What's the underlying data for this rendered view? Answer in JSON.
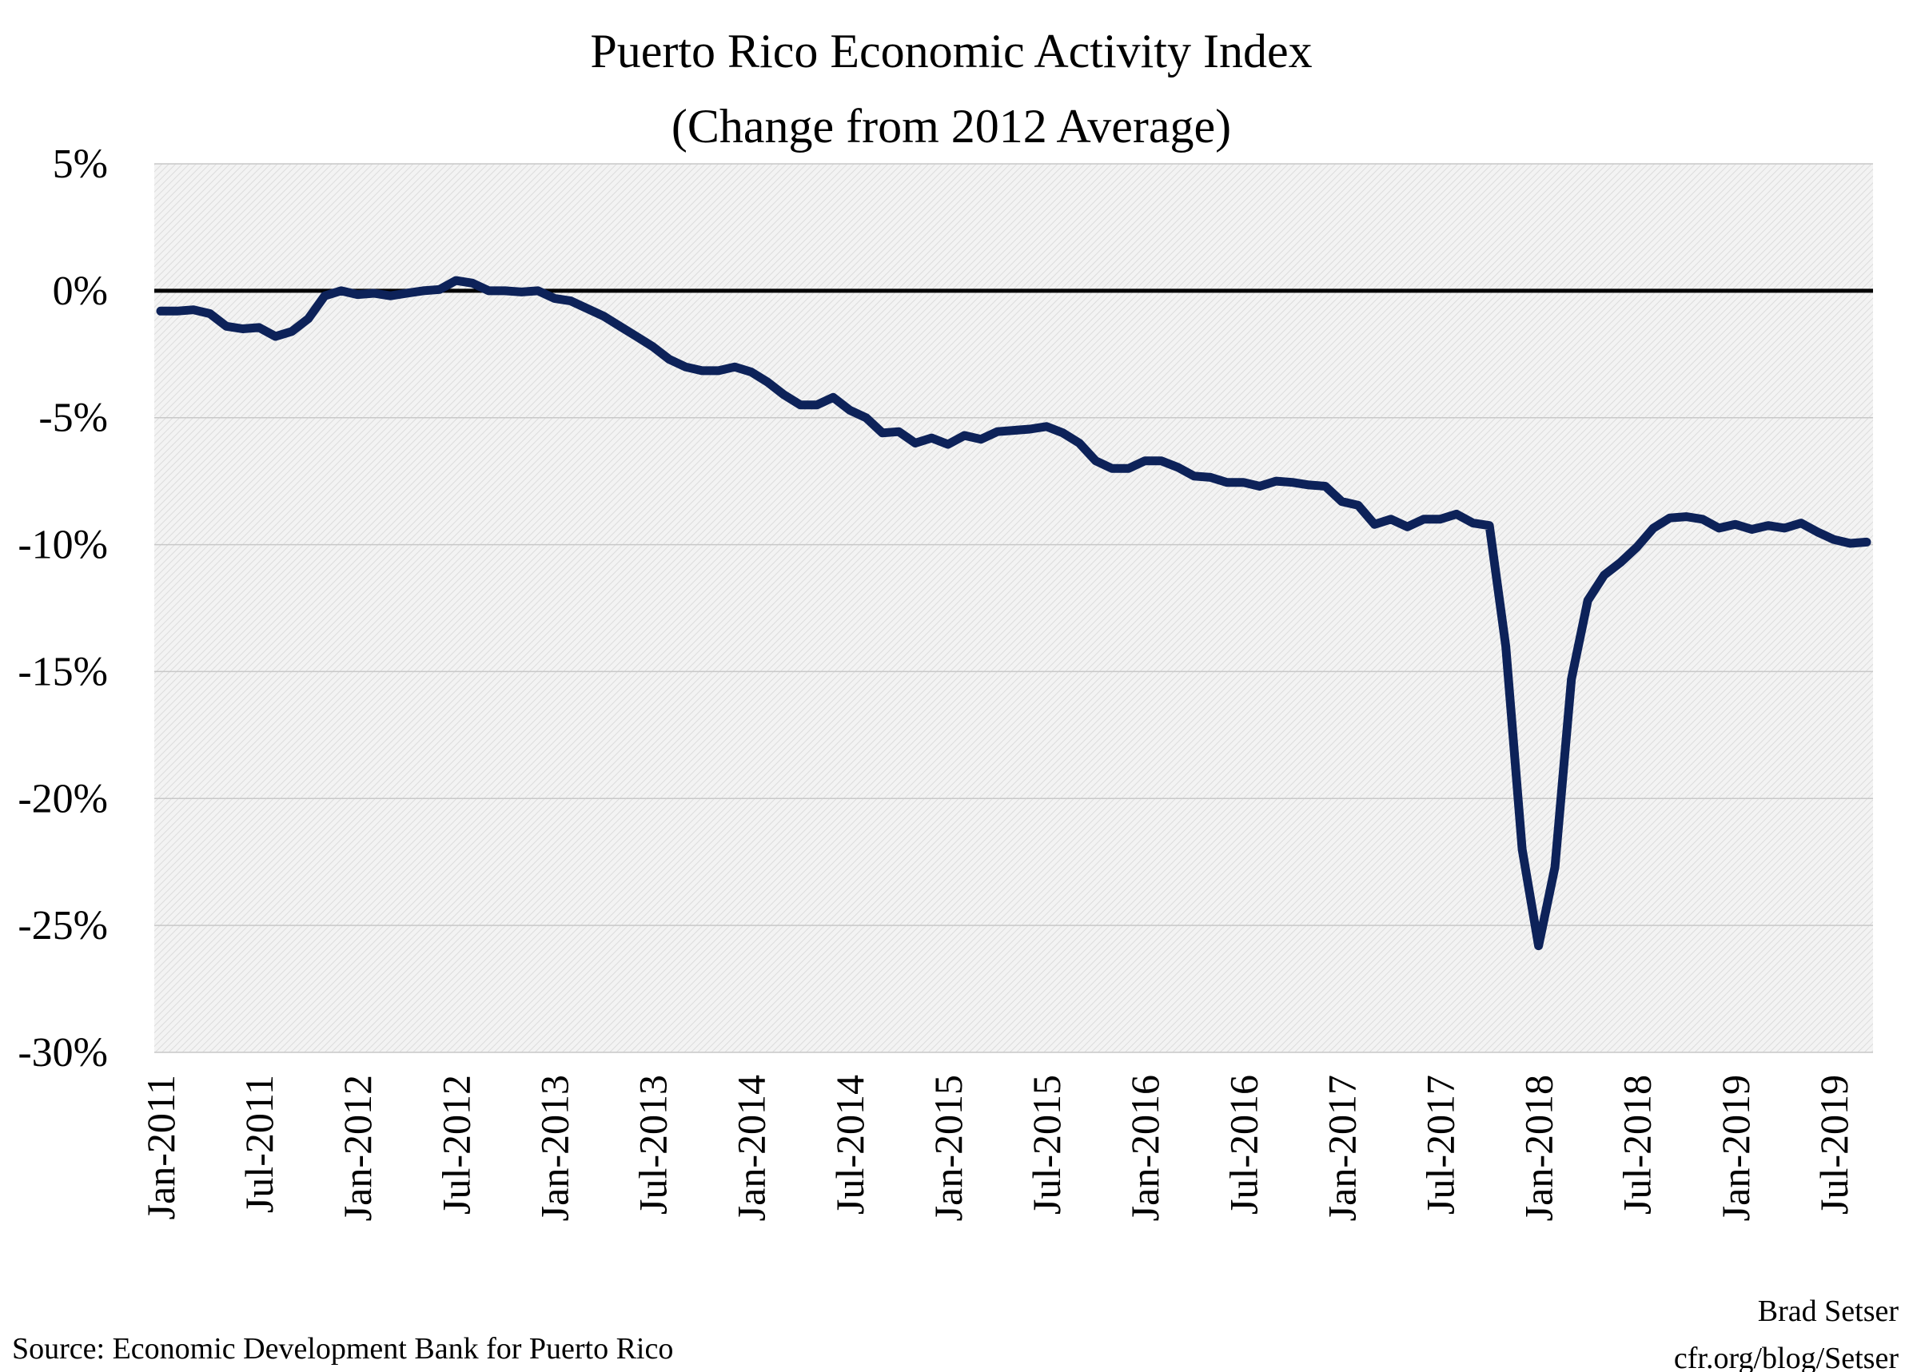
{
  "chart_data": {
    "type": "line",
    "title": "Puerto Rico Economic Activity Index",
    "subtitle": "(Change from 2012 Average)",
    "xlabel": "",
    "ylabel": "",
    "ylim": [
      -30,
      5
    ],
    "yticks": [
      "5%",
      "0%",
      "-5%",
      "-10%",
      "-15%",
      "-20%",
      "-25%",
      "-30%"
    ],
    "ytick_values": [
      5,
      0,
      -5,
      -10,
      -15,
      -20,
      -25,
      -30
    ],
    "xticks": [
      "Jan-2011",
      "Jul-2011",
      "Jan-2012",
      "Jul-2012",
      "Jan-2013",
      "Jul-2013",
      "Jan-2014",
      "Jul-2014",
      "Jan-2015",
      "Jul-2015",
      "Jan-2016",
      "Jul-2016",
      "Jan-2017",
      "Jul-2017",
      "Jan-2018",
      "Jul-2018",
      "Jan-2019",
      "Jul-2019"
    ],
    "grid": true,
    "reference_line": 0,
    "line_color": "#0d2259",
    "series": [
      {
        "x_start": "Jan-2011",
        "frequency": "monthly",
        "values": [
          -0.8,
          -0.8,
          -0.75,
          -0.9,
          -1.4,
          -1.5,
          -1.45,
          -1.8,
          -1.6,
          -1.1,
          -0.2,
          0.0,
          -0.15,
          -0.1,
          -0.2,
          -0.1,
          0.0,
          0.05,
          0.4,
          0.3,
          0.0,
          0.0,
          -0.05,
          0.0,
          -0.3,
          -0.4,
          -0.7,
          -1.0,
          -1.4,
          -1.8,
          -2.2,
          -2.7,
          -3.0,
          -3.15,
          -3.15,
          -3.0,
          -3.2,
          -3.6,
          -4.1,
          -4.5,
          -4.5,
          -4.2,
          -4.7,
          -5.0,
          -5.6,
          -5.55,
          -6.0,
          -5.8,
          -6.05,
          -5.7,
          -5.85,
          -5.55,
          -5.5,
          -5.45,
          -5.35,
          -5.6,
          -6.0,
          -6.7,
          -7.0,
          -7.0,
          -6.7,
          -6.7,
          -6.95,
          -7.3,
          -7.35,
          -7.55,
          -7.55,
          -7.7,
          -7.5,
          -7.55,
          -7.65,
          -7.7,
          -8.3,
          -8.45,
          -9.2,
          -9.0,
          -9.3,
          -9.0,
          -9.0,
          -8.8,
          -9.15,
          -9.25,
          -14.0,
          -22.0,
          -25.8,
          -22.7,
          -15.3,
          -12.2,
          -11.2,
          -10.7,
          -10.1,
          -9.35,
          -8.95,
          -8.9,
          -9.0,
          -9.35,
          -9.2,
          -9.4,
          -9.25,
          -9.35,
          -9.15,
          -9.5,
          -9.8,
          -9.95,
          -9.9
        ]
      }
    ],
    "source": "Source: Economic Development Bank for Puerto Rico",
    "credit_name": "Brad Setser",
    "credit_url": "cfr.org/blog/Setser"
  }
}
